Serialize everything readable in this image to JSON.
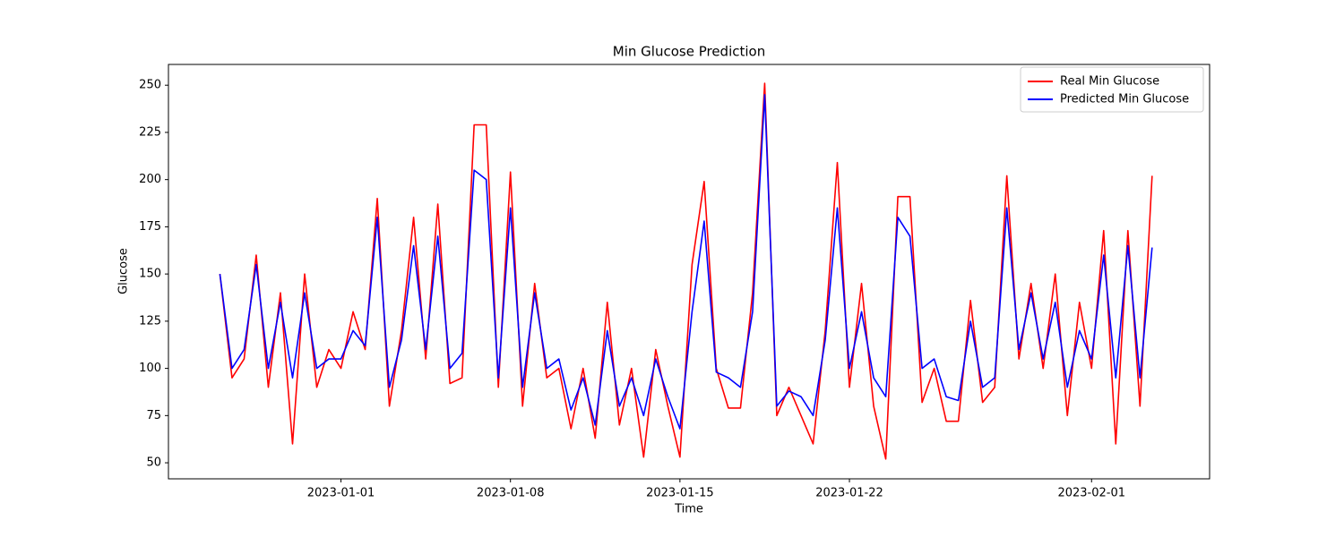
{
  "chart_data": {
    "type": "line",
    "title": "Min Glucose Prediction",
    "x_label": "Time",
    "y_label": "Glucose",
    "x": [
      "2022-12-27T00:00",
      "2022-12-27T12:00",
      "2022-12-28T00:00",
      "2022-12-28T12:00",
      "2022-12-29T00:00",
      "2022-12-29T12:00",
      "2022-12-30T00:00",
      "2022-12-30T12:00",
      "2022-12-31T00:00",
      "2022-12-31T12:00",
      "2023-01-01T00:00",
      "2023-01-01T12:00",
      "2023-01-02T00:00",
      "2023-01-02T12:00",
      "2023-01-03T00:00",
      "2023-01-03T12:00",
      "2023-01-04T00:00",
      "2023-01-04T12:00",
      "2023-01-05T00:00",
      "2023-01-05T12:00",
      "2023-01-06T00:00",
      "2023-01-06T12:00",
      "2023-01-07T00:00",
      "2023-01-07T12:00",
      "2023-01-08T00:00",
      "2023-01-08T12:00",
      "2023-01-09T00:00",
      "2023-01-09T12:00",
      "2023-01-10T00:00",
      "2023-01-10T12:00",
      "2023-01-11T00:00",
      "2023-01-11T12:00",
      "2023-01-12T00:00",
      "2023-01-12T12:00",
      "2023-01-13T00:00",
      "2023-01-13T12:00",
      "2023-01-14T00:00",
      "2023-01-14T12:00",
      "2023-01-15T00:00",
      "2023-01-15T12:00",
      "2023-01-16T00:00",
      "2023-01-16T12:00",
      "2023-01-17T00:00",
      "2023-01-17T12:00",
      "2023-01-18T00:00",
      "2023-01-18T12:00",
      "2023-01-19T00:00",
      "2023-01-19T12:00",
      "2023-01-20T00:00",
      "2023-01-20T12:00",
      "2023-01-21T00:00",
      "2023-01-21T12:00",
      "2023-01-22T00:00",
      "2023-01-22T12:00",
      "2023-01-23T00:00",
      "2023-01-23T12:00",
      "2023-01-24T00:00",
      "2023-01-24T12:00",
      "2023-01-25T00:00",
      "2023-01-25T12:00",
      "2023-01-26T00:00",
      "2023-01-26T12:00",
      "2023-01-27T00:00",
      "2023-01-27T12:00",
      "2023-01-28T00:00",
      "2023-01-28T12:00",
      "2023-01-29T00:00",
      "2023-01-29T12:00",
      "2023-01-30T00:00",
      "2023-01-30T12:00",
      "2023-01-31T00:00",
      "2023-01-31T12:00",
      "2023-02-01T00:00",
      "2023-02-01T12:00",
      "2023-02-02T00:00",
      "2023-02-02T12:00",
      "2023-02-03T00:00",
      "2023-02-03T12:00"
    ],
    "series": [
      {
        "name": "Real Min Glucose",
        "color": "#ff0000",
        "values": [
          150,
          95,
          105,
          160,
          90,
          140,
          60,
          150,
          90,
          110,
          100,
          130,
          110,
          190,
          80,
          120,
          180,
          105,
          187,
          92,
          95,
          229,
          229,
          90,
          204,
          80,
          145,
          95,
          100,
          68,
          100,
          63,
          135,
          70,
          100,
          53,
          110,
          80,
          53,
          155,
          199,
          100,
          79,
          79,
          140,
          251,
          75,
          90,
          75,
          60,
          120,
          209,
          90,
          145,
          80,
          52,
          191,
          191,
          82,
          100,
          72,
          72,
          136,
          82,
          90,
          202,
          105,
          145,
          100,
          150,
          75,
          135,
          100,
          173,
          60,
          173,
          80,
          202
        ]
      },
      {
        "name": "Predicted Min Glucose",
        "color": "#0000ff",
        "values": [
          150,
          100,
          110,
          155,
          100,
          135,
          95,
          140,
          100,
          105,
          105,
          120,
          112,
          180,
          90,
          115,
          165,
          110,
          170,
          100,
          108,
          205,
          200,
          95,
          185,
          90,
          140,
          100,
          105,
          78,
          95,
          70,
          120,
          80,
          95,
          75,
          105,
          85,
          68,
          130,
          178,
          98,
          95,
          90,
          130,
          245,
          80,
          88,
          85,
          75,
          115,
          185,
          100,
          130,
          95,
          85,
          180,
          170,
          100,
          105,
          85,
          83,
          125,
          90,
          95,
          185,
          110,
          140,
          105,
          135,
          90,
          120,
          105,
          160,
          95,
          165,
          95,
          164
        ]
      }
    ],
    "xlim": [
      "2022-12-24T21:00",
      "2023-02-05T21:00"
    ],
    "xticks": [
      "2023-01-01",
      "2023-01-08",
      "2023-01-15",
      "2023-01-22",
      "2023-02-01"
    ],
    "ylim": [
      41.5,
      261
    ],
    "yticks": [
      50,
      75,
      100,
      125,
      150,
      175,
      200,
      225,
      250
    ],
    "legend": "upper right"
  }
}
